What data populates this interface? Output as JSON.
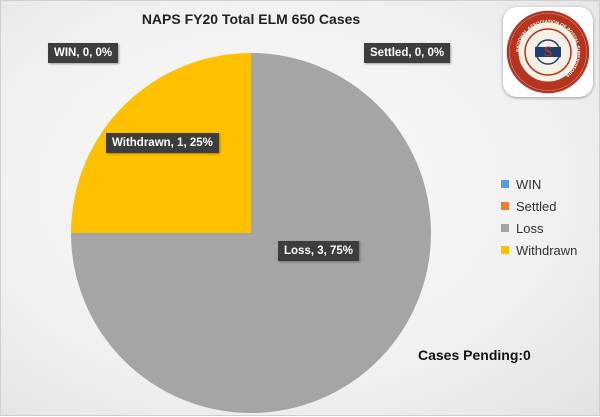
{
  "chart_data": {
    "type": "pie",
    "title": "NAPS FY20 Total ELM 650 Cases",
    "categories": [
      "WIN",
      "Settled",
      "Loss",
      "Withdrawn"
    ],
    "values": [
      0,
      0,
      3,
      1
    ],
    "percents": [
      "0%",
      "0%",
      "75%",
      "25%"
    ],
    "data_labels": [
      "WIN, 0, 0%",
      "Settled, 0, 0%",
      "Loss, 3, 75%",
      "Withdrawn, 1, 25%"
    ],
    "colors": [
      "#5b9bd5",
      "#ed7d31",
      "#a5a5a5",
      "#ffc000"
    ],
    "legend_position": "right"
  },
  "footer": {
    "cases_pending": "Cases Pending:0"
  },
  "logo": {
    "text": "NATIONAL ASSOCIATION OF POSTAL SUPERVISORS"
  }
}
